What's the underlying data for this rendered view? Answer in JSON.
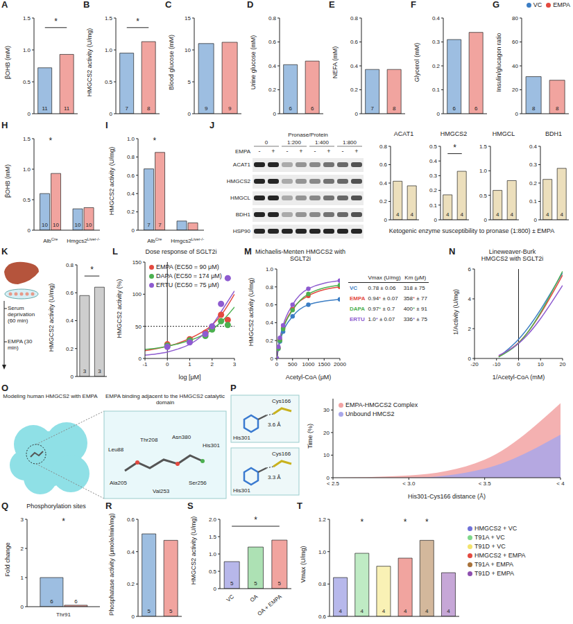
{
  "chart_data": [
    {
      "panel": "A",
      "type": "bar",
      "y_label": "βOHB (mM)",
      "categories": [
        "VC",
        "EMPA"
      ],
      "values": [
        0.72,
        0.93
      ],
      "n": [
        11,
        11
      ],
      "colors": [
        "#3b7dc4",
        "#e3493f"
      ],
      "ylim": [
        0,
        1.5
      ],
      "yticks": [
        0,
        0.5,
        {
          "value": 1,
          "label": "1.0"
        },
        1.5
      ],
      "tick_labels": "y",
      "significance": [
        {
          "from": 0,
          "to": 1,
          "label": "*"
        }
      ]
    },
    {
      "panel": "B",
      "type": "bar",
      "y_label": "HMGCS2 activity (U/mg)",
      "categories": [
        "VC",
        "EMPA"
      ],
      "values": [
        0.95,
        1.13
      ],
      "n": [
        7,
        8
      ],
      "colors": [
        "#3b7dc4",
        "#e3493f"
      ],
      "ylim": [
        0,
        1.5
      ],
      "yticks": [
        0,
        0.5,
        {
          "value": 1,
          "label": "1.0"
        },
        1.5
      ],
      "tick_labels": "y",
      "significance": [
        {
          "from": 0,
          "to": 1,
          "label": "*"
        }
      ]
    },
    {
      "panel": "C",
      "type": "bar",
      "y_label": "Blood glucose (mM)",
      "categories": [
        "VC",
        "EMPA"
      ],
      "values": [
        11.0,
        11.2
      ],
      "n": [
        9,
        9
      ],
      "colors": [
        "#3b7dc4",
        "#e3493f"
      ],
      "ylim": [
        0,
        15
      ],
      "yticks": [
        0,
        5,
        10,
        15
      ],
      "tick_labels": "y"
    },
    {
      "panel": "D",
      "type": "bar",
      "y_label": "Urine glucose (mM)",
      "categories": [
        "VC",
        "EMPA"
      ],
      "values": [
        0.41,
        0.44
      ],
      "n": [
        6,
        6
      ],
      "colors": [
        "#3b7dc4",
        "#e3493f"
      ],
      "ylim": [
        0,
        0.8
      ],
      "yticks": [
        0,
        0.2,
        0.4,
        0.6,
        0.8
      ],
      "tick_labels": "y"
    },
    {
      "panel": "E",
      "type": "bar",
      "y_label": "NEFA (mM)",
      "categories": [
        "VC",
        "EMPA"
      ],
      "values": [
        0.37,
        0.37
      ],
      "n": [
        7,
        8
      ],
      "colors": [
        "#3b7dc4",
        "#e3493f"
      ],
      "ylim": [
        0,
        0.8
      ],
      "yticks": [
        0,
        0.2,
        0.4,
        0.6,
        0.8
      ],
      "tick_labels": "y"
    },
    {
      "panel": "F",
      "type": "bar",
      "y_label": "Glycerol (mM)",
      "categories": [
        "VC",
        "EMPA"
      ],
      "values": [
        0.31,
        0.34
      ],
      "n": [
        6,
        6
      ],
      "colors": [
        "#3b7dc4",
        "#e3493f"
      ],
      "ylim": [
        0,
        0.4
      ],
      "yticks": [
        0,
        0.1,
        0.2,
        0.3,
        0.4
      ],
      "tick_labels": "y"
    },
    {
      "panel": "G",
      "type": "bar",
      "y_label": "Insulin/glucagon ratio",
      "categories": [
        "VC",
        "EMPA"
      ],
      "values": [
        31,
        28
      ],
      "n": [
        8,
        8
      ],
      "colors": [
        "#3b7dc4",
        "#e3493f"
      ],
      "ylim": [
        0,
        80
      ],
      "yticks": [
        0,
        20,
        40,
        60,
        80
      ],
      "tick_labels": "y",
      "legend": "top-right"
    },
    {
      "panel": "H",
      "type": "bar",
      "y_label": "βOHB (mM)",
      "categories": [
        "AlbCre",
        "Hmgcs2Liver-/-"
      ],
      "series": [
        {
          "name": "VC",
          "color": "#3b7dc4",
          "values": [
            0.6,
            0.35
          ],
          "n": [
            10,
            10
          ]
        },
        {
          "name": "EMPA",
          "color": "#e3493f",
          "values": [
            0.93,
            0.37
          ],
          "n": [
            10,
            10
          ]
        }
      ],
      "ylim": [
        0,
        1.5
      ],
      "yticks": [
        0,
        0.5,
        {
          "value": 1,
          "label": "1.0"
        },
        1.5
      ],
      "significance": [
        {
          "category": 0,
          "label": "*"
        }
      ]
    },
    {
      "panel": "I",
      "type": "bar",
      "y_label": "HMGCS2 activity (U/mg)",
      "categories": [
        "AlbCre",
        "Hmgcs2Liver-/-"
      ],
      "series": [
        {
          "name": "VC",
          "color": "#3b7dc4",
          "values": [
            0.67,
            0.1
          ],
          "n": [
            7,
            null
          ]
        },
        {
          "name": "EMPA",
          "color": "#e3493f",
          "values": [
            0.85,
            0.08
          ],
          "n": [
            7,
            null
          ]
        }
      ],
      "ylim": [
        0,
        1
      ],
      "yticks": [
        0,
        0.2,
        0.4,
        0.6,
        0.8,
        {
          "value": 1,
          "label": "1.0"
        }
      ],
      "significance": [
        {
          "category": 0,
          "label": "*"
        }
      ]
    },
    {
      "type": "bar",
      "title": "ACAT1",
      "categories": [
        null,
        null
      ],
      "values": [
        0.42,
        0.37
      ],
      "n": [
        4,
        4
      ],
      "colors": [
        "#d9bf7a",
        "#d9bf7a"
      ],
      "ylim": [
        0,
        0.8
      ],
      "yticks": [
        0,
        0.2,
        0.4,
        0.6,
        0.8
      ],
      "tick_labels": "y"
    },
    {
      "type": "bar",
      "title": "HMGCS2",
      "categories": [
        null,
        null
      ],
      "values": [
        0.17,
        0.33
      ],
      "n": [
        4,
        4
      ],
      "colors": [
        "#d9bf7a",
        "#d9bf7a"
      ],
      "ylim": [
        0,
        0.5
      ],
      "yticks": [
        0,
        0.1,
        0.2,
        0.3,
        0.4,
        0.5
      ],
      "tick_labels": "y",
      "significance": [
        {
          "from": 0,
          "to": 1,
          "label": "*"
        }
      ]
    },
    {
      "type": "bar",
      "title": "HMGCL",
      "categories": [
        null,
        null
      ],
      "values": [
        0.6,
        0.8
      ],
      "n": [
        4,
        4
      ],
      "colors": [
        "#d9bf7a",
        "#d9bf7a"
      ],
      "ylim": [
        0,
        1.5
      ],
      "yticks": [
        0,
        0.5,
        {
          "value": 1,
          "label": "1.0"
        },
        1.5
      ],
      "tick_labels": "y"
    },
    {
      "type": "bar",
      "title": "BDH1",
      "categories": [
        null,
        null
      ],
      "values": [
        0.22,
        0.28
      ],
      "n": [
        4,
        4
      ],
      "colors": [
        "#d9bf7a",
        "#d9bf7a"
      ],
      "ylim": [
        0,
        0.4
      ],
      "yticks": [
        0,
        0.1,
        0.2,
        0.3,
        0.4
      ],
      "tick_labels": "y"
    },
    {
      "panel": "K",
      "type": "bar",
      "y_label": "HMGCS2 activity (U/mg)",
      "categories": [
        null,
        null
      ],
      "values": [
        0.58,
        0.64
      ],
      "n": [
        3,
        3
      ],
      "colors": [
        "#9e9e9e",
        "#9e9e9e"
      ],
      "ylim": [
        0,
        0.8
      ],
      "yticks": [
        0,
        0.2,
        0.4,
        0.6,
        0.8
      ],
      "tick_labels": "y",
      "significance": [
        {
          "from": 0,
          "to": 1,
          "label": "*"
        }
      ]
    },
    {
      "panel": "L",
      "type": "line",
      "title": "Dose response of SGLT2i",
      "x_label": "log [μM]",
      "y_label": "HMGCS2 activity (%)",
      "xlim": [
        -1,
        3
      ],
      "xticks": [
        -1,
        0,
        1,
        2,
        3
      ],
      "ylim": [
        0,
        150
      ],
      "yticks": [
        0,
        50,
        100,
        150
      ],
      "reference_line": 50,
      "legend": "top-left",
      "x": [
        0,
        1,
        1.7,
        2,
        2.4,
        2.7
      ],
      "fit_x": [
        -1,
        -0.5,
        0,
        0.5,
        1,
        1.5,
        2,
        2.5,
        3
      ],
      "series": [
        {
          "name": "EMPA (EC50 = 90 μM)",
          "color": "#e3493f",
          "values": [
            22,
            30,
            40,
            48,
            68,
            60
          ],
          "fit_values": [
            12,
            15,
            19,
            24,
            31,
            40,
            52,
            72,
            100
          ]
        },
        {
          "name": "DAPA (EC50 = 174 μM)",
          "color": "#4cb050",
          "values": [
            20,
            28,
            35,
            45,
            58,
            52
          ],
          "fit_values": [
            14,
            16,
            19,
            23,
            28,
            35,
            45,
            60,
            80
          ]
        },
        {
          "name": "ERTU (EC50 = 75 μM)",
          "color": "#8e5bd0",
          "values": [
            18,
            25,
            38,
            50,
            85,
            125
          ],
          "fit_values": [
            5,
            7,
            10,
            15,
            22,
            34,
            52,
            78,
            105
          ]
        }
      ]
    },
    {
      "panel": "M",
      "type": "line",
      "title": "Michaelis-Menten HMGCS2 with SGLT2i",
      "x_label": "Acetyl-CoA (μM)",
      "y_label": "HMGCS2 activity (U/mg)",
      "xlim": [
        0,
        2000
      ],
      "xticks": [
        0,
        500,
        1000,
        1500,
        2000
      ],
      "ylim": [
        0,
        1
      ],
      "yticks": [
        0,
        0.2,
        0.4,
        0.6,
        0.8,
        {
          "value": 1,
          "label": "1.0"
        }
      ],
      "marker": "circle",
      "x": [
        0,
        50,
        100,
        200,
        500,
        1000,
        2000
      ],
      "series": [
        {
          "name": "VC",
          "color": "#3b7dc4",
          "values": [
            0,
            0.11,
            0.19,
            0.3,
            0.47,
            0.6,
            0.66
          ]
        },
        {
          "name": "EMPA",
          "color": "#e3493f",
          "values": [
            0,
            0.12,
            0.21,
            0.34,
            0.55,
            0.7,
            0.8
          ]
        },
        {
          "name": "DAPA",
          "color": "#4cb050",
          "values": [
            0,
            0.11,
            0.2,
            0.33,
            0.54,
            0.72,
            0.82
          ]
        },
        {
          "name": "ERTU",
          "color": "#8e5bd0",
          "values": [
            0,
            0.13,
            0.23,
            0.37,
            0.6,
            0.78,
            0.87
          ]
        }
      ],
      "table": {
        "columns": [
          "Vmax (U/mg)",
          "Km (μM)"
        ],
        "rows": [
          [
            "VC",
            "0.78 ± 0.06",
            "318 ± 75"
          ],
          [
            "EMPA",
            "0.94* ± 0.07",
            "358* ± 77"
          ],
          [
            "DAPA",
            "0.97* ± 0.7",
            "400* ± 91"
          ],
          [
            "ERTU",
            "1.0* ± 0.07",
            "336* ± 75"
          ]
        ]
      }
    },
    {
      "panel": "N",
      "type": "line",
      "title": "Lineweaver-Burk",
      "subtitle": "HMGCS2 with SGLT2i",
      "x_label": "1/Acetyl-CoA (mM)",
      "y_label": "1/Activity (U/mg)",
      "xlim": [
        -20,
        20
      ],
      "xticks": [
        -20,
        -10,
        0,
        10,
        20
      ],
      "ylim": [
        0,
        6
      ],
      "yticks": [
        0,
        2,
        4,
        6
      ],
      "x": [
        -9,
        0,
        20
      ],
      "series": [
        {
          "name": "VC",
          "color": "#3b7dc4",
          "values": [
            0.1,
            1.28,
            5.75
          ]
        },
        {
          "name": "EMPA",
          "color": "#e3493f",
          "values": [
            0.15,
            1.06,
            5.6
          ]
        },
        {
          "name": "DAPA",
          "color": "#4cb050",
          "values": [
            0.1,
            1.03,
            5.85
          ]
        },
        {
          "name": "ERTU",
          "color": "#8e5bd0",
          "values": [
            0.2,
            1.0,
            4.9
          ]
        }
      ]
    },
    {
      "type": "area",
      "x_label": "His301-Cys166 distance (Å)",
      "y_label": "Time (%)",
      "categories": [
        "< 2.5",
        "< 3.0",
        "< 3.5",
        "< 4"
      ],
      "ylim": [
        0,
        35
      ],
      "yticks": [
        0,
        10,
        20,
        30
      ],
      "legend": "top-left",
      "series": [
        {
          "name": "EMPA-HMGCS2 Complex",
          "color": "#f2a3a3",
          "values": [
            0,
            1,
            8,
            33
          ]
        },
        {
          "name": "Unbound HMCS2",
          "color": "#a9a7ea",
          "values": [
            0,
            0,
            4,
            19
          ]
        }
      ]
    },
    {
      "panel": "Q",
      "type": "bar",
      "title": "Phosphorylation sites",
      "y_label": "Fold change",
      "categories": [
        "Thr91"
      ],
      "series": [
        {
          "name": "VC",
          "color": "#3b7dc4",
          "values": [
            1.0
          ],
          "n": [
            6
          ]
        },
        {
          "name": "EMPA",
          "color": "#e3493f",
          "values": [
            0.05
          ],
          "n": [
            6
          ]
        }
      ],
      "ylim": [
        0,
        3
      ],
      "yticks": [
        0,
        1,
        2,
        3
      ],
      "significance": [
        {
          "category": 0,
          "label": "*"
        }
      ]
    },
    {
      "panel": "R",
      "type": "bar",
      "y_label": "Phosphatase activity (μmole/min/mg)",
      "categories": [
        "VC",
        "EMPA"
      ],
      "values": [
        0.51,
        0.47
      ],
      "n": [
        5,
        5
      ],
      "colors": [
        "#3b7dc4",
        "#e3493f"
      ],
      "ylim": [
        0,
        0.6
      ],
      "yticks": [
        0,
        0.2,
        0.4,
        0.6
      ],
      "tick_labels": "y"
    },
    {
      "panel": "S",
      "type": "bar",
      "y_label": "HMGCS2 activity (U/mg)",
      "categories": [
        "VC",
        "OA",
        "OA + EMPA"
      ],
      "values": [
        0.78,
        1.2,
        1.4
      ],
      "n": [
        5,
        5,
        5
      ],
      "colors": [
        "#6f6fd6",
        "#5cc46a",
        "#e3493f"
      ],
      "ylim": [
        0,
        2
      ],
      "yticks": [
        0,
        0.5,
        {
          "value": 1,
          "label": "1.0"
        },
        1.5,
        {
          "value": 2,
          "label": "2.0"
        }
      ],
      "significance": [
        {
          "from": 0,
          "to": 2,
          "label": "*"
        }
      ]
    },
    {
      "panel": "T",
      "type": "bar",
      "y_label": "Vmax (U/mg)",
      "categories": [
        "HMGCS2 + VC",
        "T91A + VC",
        "T91D + VC",
        "HMGCS2 + EMPA",
        "T91A + EMPA",
        "T91D + EMPA"
      ],
      "values": [
        0.84,
        0.99,
        0.91,
        0.96,
        1.07,
        0.87
      ],
      "n": [
        4,
        4,
        4,
        4,
        4,
        4
      ],
      "colors": [
        "#6f72d8",
        "#7fd88a",
        "#f3e36b",
        "#e3493f",
        "#a8723a",
        "#8e4fb0"
      ],
      "ylim": [
        0.6,
        1.2
      ],
      "yticks": [
        0.6,
        0.8,
        {
          "value": 1,
          "label": "1.0"
        },
        1.2
      ],
      "tick_labels": "y",
      "legend": "right",
      "significance": [
        {
          "category": 1,
          "label": "*"
        },
        {
          "category": 3,
          "label": "*"
        },
        {
          "category": 4,
          "label": "*"
        }
      ]
    }
  ],
  "diagrams": {
    "blot": {
      "panel": "J",
      "header": "Pronase/Protein",
      "ratios": [
        "0",
        "1:200",
        "1:400",
        "1:800"
      ],
      "treatment": "EMPA",
      "signs": [
        "-",
        "+"
      ],
      "rows": [
        "ACAT1",
        "HMGCS2",
        "HMGCL",
        "BDH1",
        "HSP90"
      ],
      "caption": "Ketogenic enzyme susceptibility to pronase (1:800) ± EMPA"
    },
    "schematic": {
      "steps": [
        "Serum deprivation (60 min)",
        "EMPA (30 min)"
      ]
    },
    "model": {
      "panel": "O",
      "title": "Modeling human HMGCS2 with EMPA",
      "inset_title": "EMPA binding adjacent to the HMGCS2 catalytic domain",
      "residues": [
        "Leu88",
        "Thr208",
        "Asn380",
        "His301",
        "Ala205",
        "Val253",
        "Ser256"
      ]
    },
    "structures": {
      "panel": "P",
      "views": [
        {
          "labels": [
            "Cys166",
            "His301"
          ],
          "distance": "3.6 Å"
        },
        {
          "labels": [
            "Cys166",
            "His301"
          ],
          "distance": "3.3 Å"
        }
      ]
    }
  }
}
